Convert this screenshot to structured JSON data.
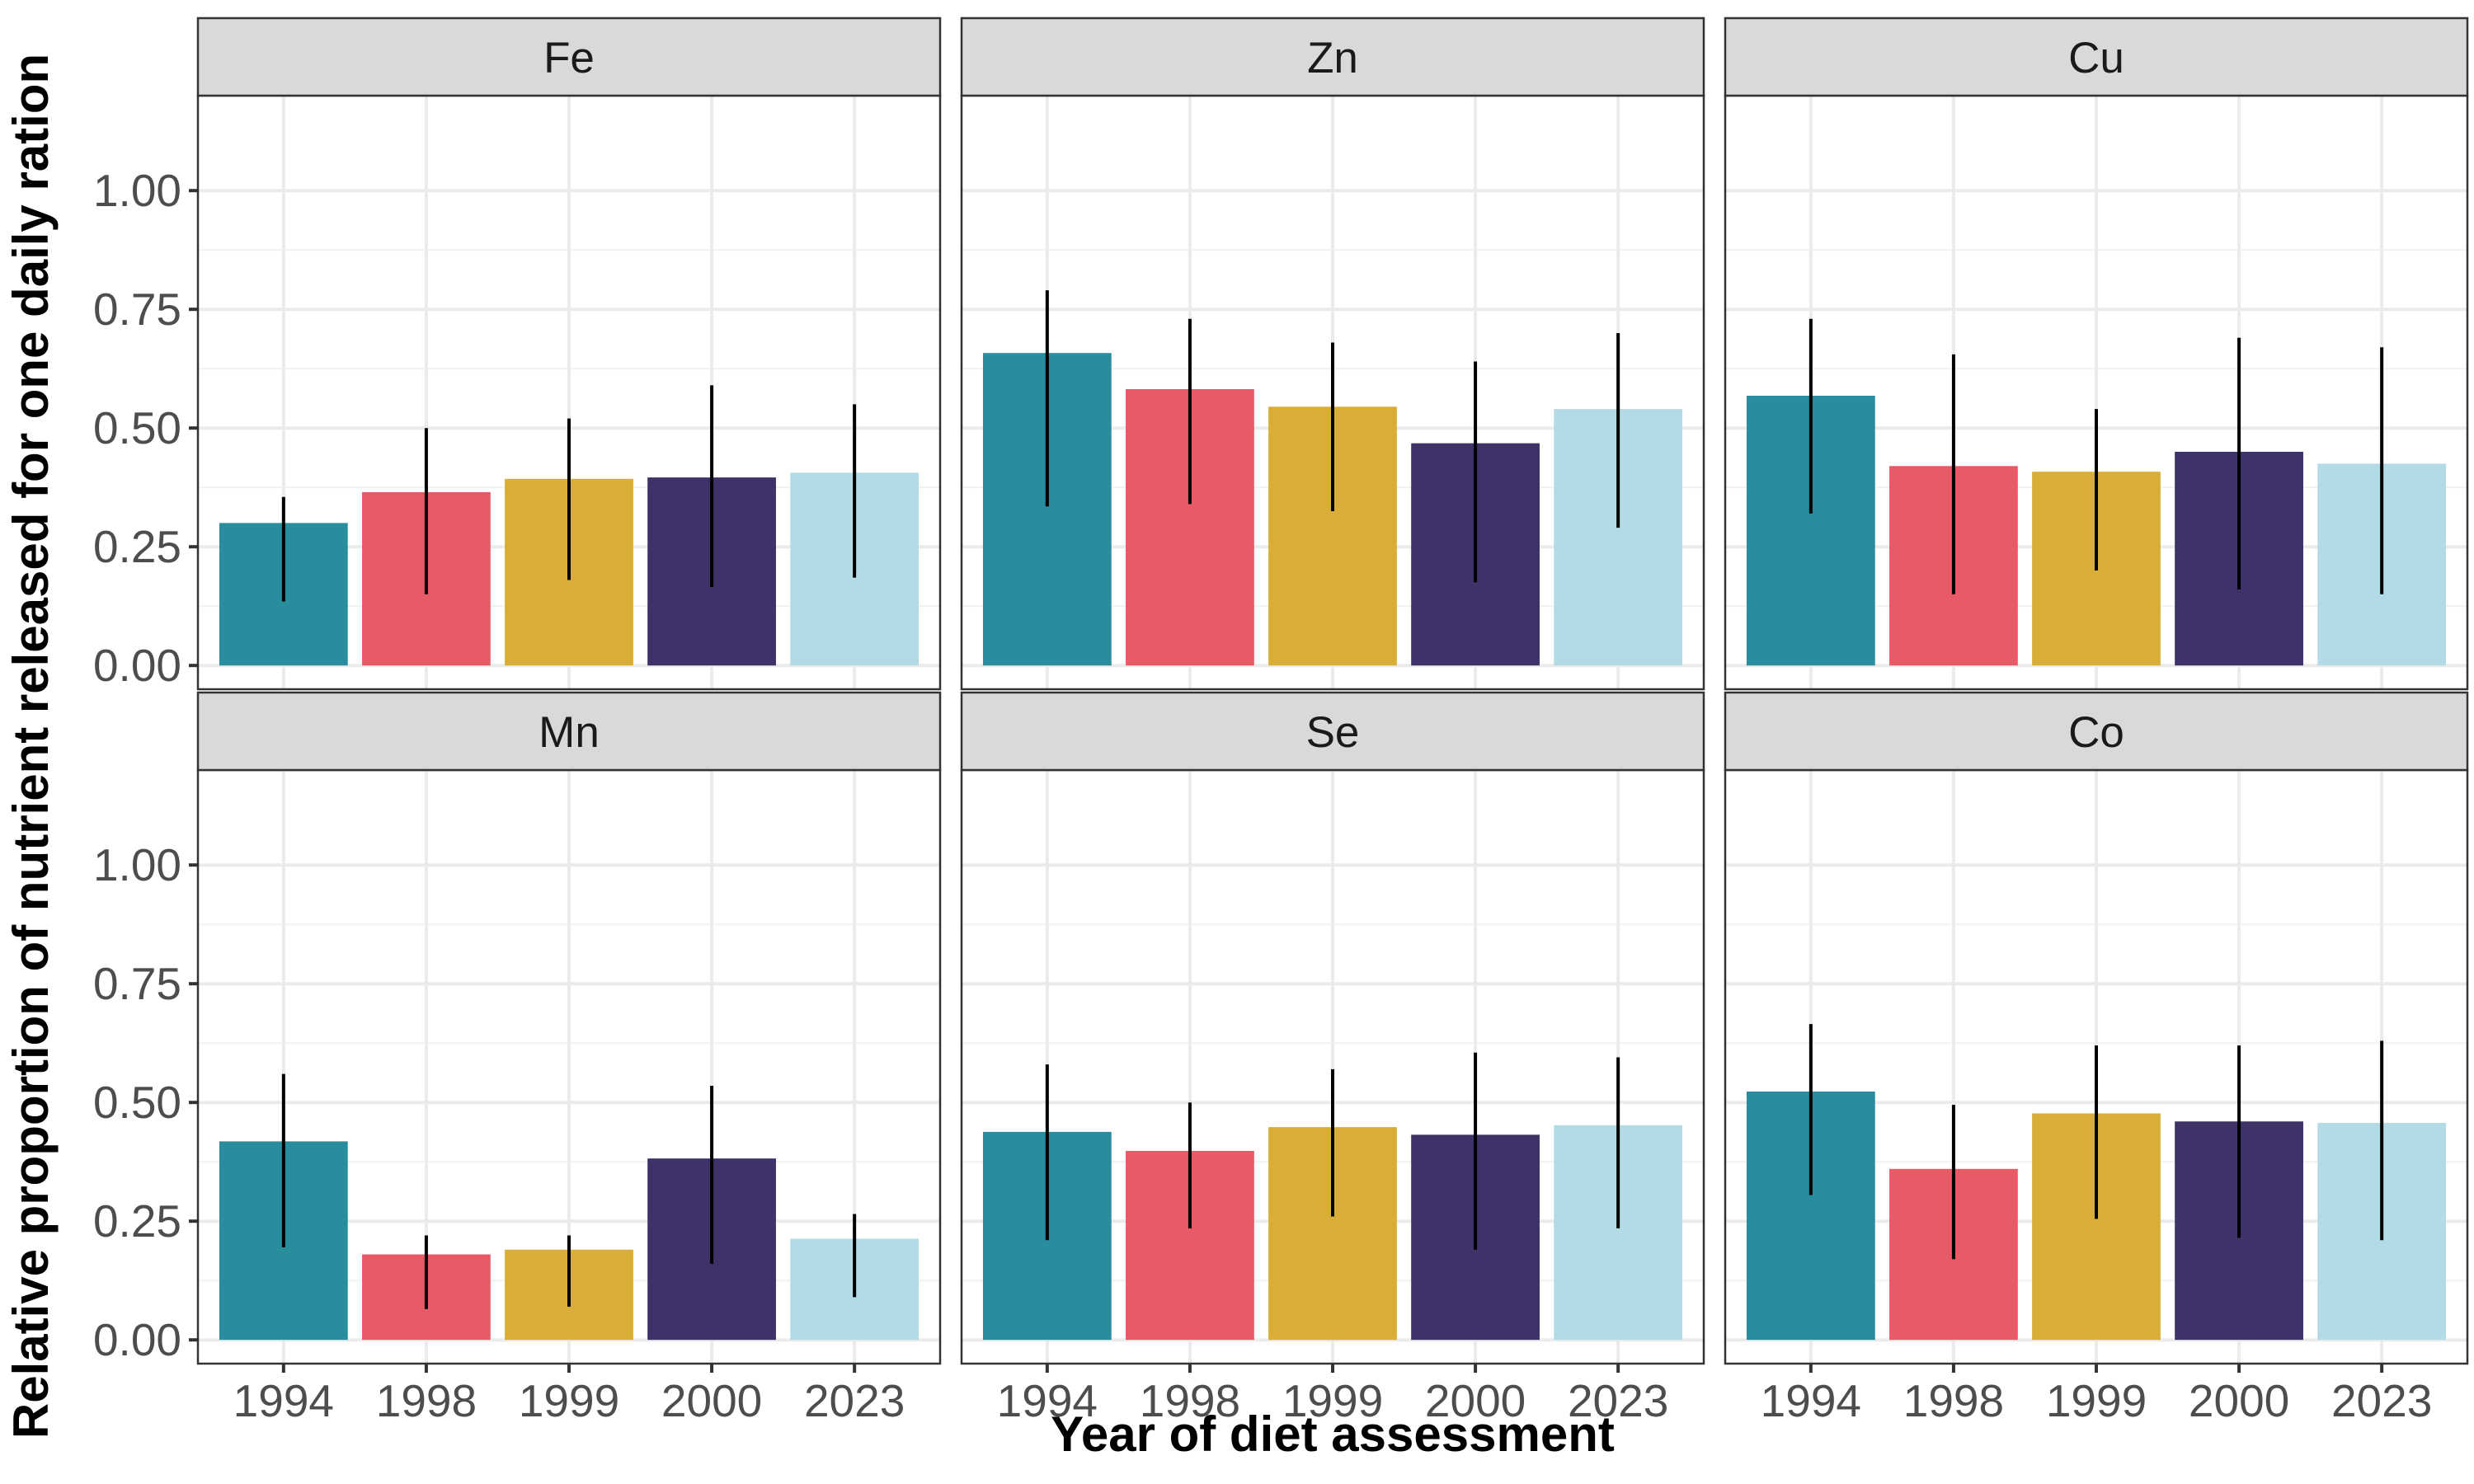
{
  "chart_data": {
    "type": "bar",
    "xlabel": "Year of diet assessment",
    "ylabel": "Relative proportion of nutrient released for one daily ration",
    "categories": [
      "1994",
      "1998",
      "1999",
      "2000",
      "2023"
    ],
    "ylim": [
      -0.05,
      1.2
    ],
    "y_ticks": [
      "0.00",
      "0.25",
      "0.50",
      "0.75",
      "1.00"
    ],
    "grid": true,
    "legend": "none",
    "colors": [
      "#288d9c",
      "#e75a66",
      "#d8ae38",
      "#3f3268",
      "#b3dbe6"
    ],
    "panels": [
      {
        "name": "Fe",
        "values": [
          0.3,
          0.365,
          0.393,
          0.396,
          0.406
        ],
        "lower": [
          0.135,
          0.15,
          0.18,
          0.165,
          0.185
        ],
        "upper": [
          0.355,
          0.5,
          0.52,
          0.59,
          0.55
        ]
      },
      {
        "name": "Zn",
        "values": [
          0.658,
          0.582,
          0.545,
          0.468,
          0.54
        ],
        "lower": [
          0.335,
          0.34,
          0.325,
          0.175,
          0.29
        ],
        "upper": [
          0.79,
          0.73,
          0.68,
          0.64,
          0.7
        ]
      },
      {
        "name": "Cu",
        "values": [
          0.568,
          0.42,
          0.408,
          0.45,
          0.425
        ],
        "lower": [
          0.32,
          0.15,
          0.2,
          0.16,
          0.15
        ],
        "upper": [
          0.73,
          0.655,
          0.54,
          0.69,
          0.67
        ]
      },
      {
        "name": "Mn",
        "values": [
          0.418,
          0.18,
          0.19,
          0.382,
          0.213
        ],
        "lower": [
          0.195,
          0.065,
          0.07,
          0.16,
          0.09
        ],
        "upper": [
          0.56,
          0.22,
          0.22,
          0.535,
          0.265
        ]
      },
      {
        "name": "Se",
        "values": [
          0.438,
          0.398,
          0.448,
          0.432,
          0.452
        ],
        "lower": [
          0.21,
          0.235,
          0.26,
          0.19,
          0.235
        ],
        "upper": [
          0.58,
          0.5,
          0.57,
          0.605,
          0.595
        ]
      },
      {
        "name": "Co",
        "values": [
          0.523,
          0.36,
          0.477,
          0.46,
          0.457
        ],
        "lower": [
          0.305,
          0.17,
          0.255,
          0.215,
          0.21
        ],
        "upper": [
          0.665,
          0.495,
          0.62,
          0.62,
          0.63
        ]
      }
    ]
  }
}
